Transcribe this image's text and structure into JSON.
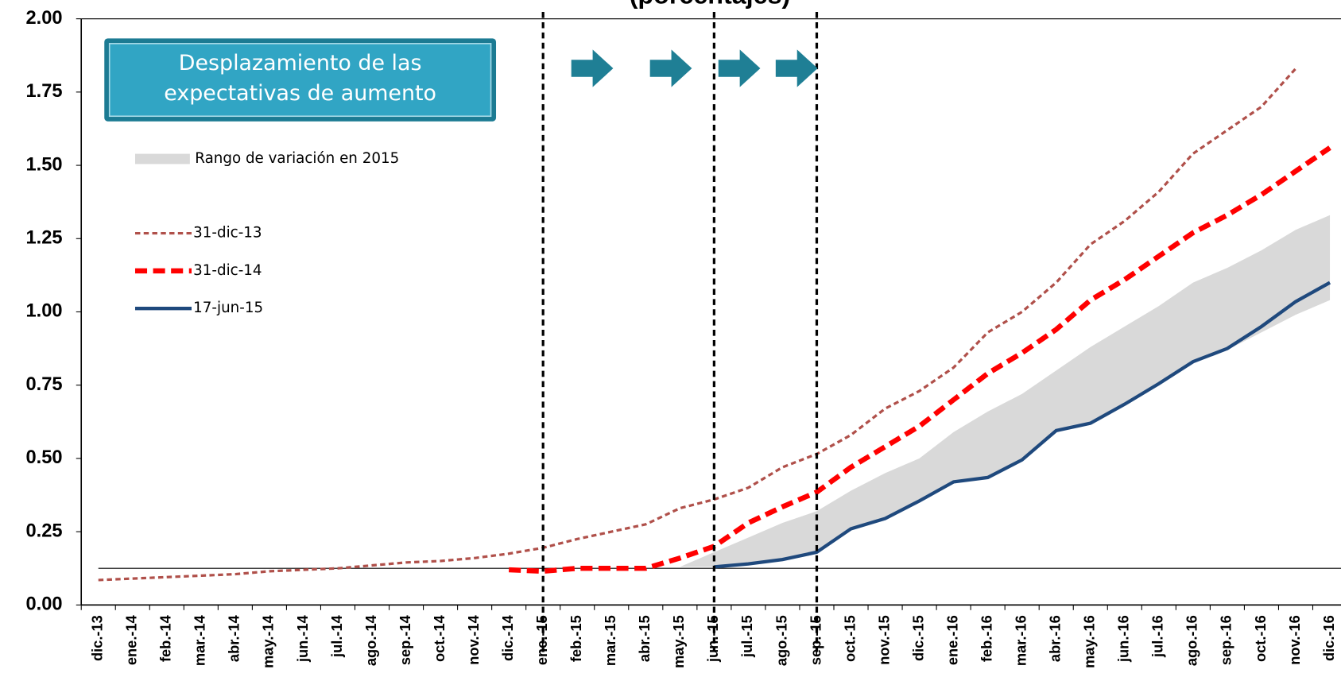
{
  "chart_data": {
    "type": "line",
    "title": "(porcentajes)",
    "annotation": [
      "Desplazamiento de las",
      "expectativas de aumento"
    ],
    "categories": [
      "dic.-13",
      "ene.-14",
      "feb.-14",
      "mar.-14",
      "abr.-14",
      "may.-14",
      "jun.-14",
      "jul.-14",
      "ago.-14",
      "sep.-14",
      "oct.-14",
      "nov.-14",
      "dic.-14",
      "ene.-15",
      "feb.-15",
      "mar.-15",
      "abr.-15",
      "may.-15",
      "jun.-15",
      "jul.-15",
      "ago.-15",
      "sep.-15",
      "oct.-15",
      "nov.-15",
      "dic.-15",
      "ene.-16",
      "feb.-16",
      "mar.-16",
      "abr.-16",
      "may.-16",
      "jun.-16",
      "jul.-16",
      "ago.-16",
      "sep.-16",
      "oct.-16",
      "nov.-16",
      "dic.-16"
    ],
    "ylim": [
      0,
      2
    ],
    "yticks": [
      {
        "value": 0,
        "label": "0.00"
      },
      {
        "value": 0.25,
        "label": "0.25"
      },
      {
        "value": 0.5,
        "label": "0.50"
      },
      {
        "value": 0.75,
        "label": "0.75"
      },
      {
        "value": 1,
        "label": "1.00"
      },
      {
        "value": 1.25,
        "label": "1.25"
      },
      {
        "value": 1.5,
        "label": "1.50"
      },
      {
        "value": 1.75,
        "label": "1.75"
      },
      {
        "value": 2,
        "label": "2.00"
      }
    ],
    "reference_line": 0.125,
    "vertical_lines": [
      "ene.-15",
      "jun.-15",
      "sep.-15"
    ],
    "band": {
      "name": "Rango de variación en 2015",
      "color": "#d9d9d9",
      "low": [
        null,
        null,
        null,
        null,
        null,
        null,
        null,
        null,
        null,
        null,
        null,
        null,
        null,
        null,
        null,
        null,
        null,
        0.13,
        0.13,
        0.14,
        0.155,
        0.18,
        0.26,
        0.295,
        0.355,
        0.42,
        0.435,
        0.495,
        0.59,
        0.62,
        0.685,
        0.755,
        0.83,
        0.87,
        0.93,
        0.99,
        1.04
      ],
      "high": [
        null,
        null,
        null,
        null,
        null,
        null,
        null,
        null,
        null,
        null,
        null,
        null,
        null,
        null,
        null,
        null,
        null,
        0.13,
        0.18,
        0.23,
        0.28,
        0.32,
        0.39,
        0.45,
        0.5,
        0.59,
        0.66,
        0.72,
        0.8,
        0.88,
        0.95,
        1.02,
        1.1,
        1.15,
        1.21,
        1.28,
        1.33
      ]
    },
    "series": [
      {
        "name": "31-dic-13",
        "color": "#b0504a",
        "dash": "6,4",
        "width": 3,
        "values": [
          0.085,
          0.09,
          0.095,
          0.1,
          0.105,
          0.115,
          0.12,
          0.125,
          0.135,
          0.145,
          0.15,
          0.16,
          0.175,
          0.195,
          0.225,
          0.25,
          0.275,
          0.33,
          0.36,
          0.4,
          0.47,
          0.515,
          0.58,
          0.67,
          0.73,
          0.81,
          0.93,
          1.0,
          1.1,
          1.23,
          1.31,
          1.41,
          1.54,
          1.62,
          1.7,
          1.83,
          null
        ]
      },
      {
        "name": "31-dic-14",
        "color": "#ff0000",
        "dash": "14,7",
        "width": 6,
        "values": [
          null,
          null,
          null,
          null,
          null,
          null,
          null,
          null,
          null,
          null,
          null,
          null,
          0.12,
          0.115,
          0.125,
          0.125,
          0.125,
          0.16,
          0.2,
          0.28,
          0.335,
          0.385,
          0.47,
          0.54,
          0.61,
          0.7,
          0.79,
          0.86,
          0.94,
          1.04,
          1.11,
          1.19,
          1.27,
          1.33,
          1.4,
          1.48,
          1.56
        ]
      },
      {
        "name": "17-jun-15",
        "color": "#1f497d",
        "dash": "none",
        "width": 4,
        "values": [
          null,
          null,
          null,
          null,
          null,
          null,
          null,
          null,
          null,
          null,
          null,
          null,
          null,
          null,
          null,
          null,
          null,
          null,
          0.13,
          0.14,
          0.155,
          0.18,
          0.26,
          0.295,
          0.355,
          0.42,
          0.435,
          0.495,
          0.595,
          0.62,
          0.685,
          0.755,
          0.83,
          0.875,
          0.95,
          1.035,
          1.1
        ]
      }
    ]
  }
}
